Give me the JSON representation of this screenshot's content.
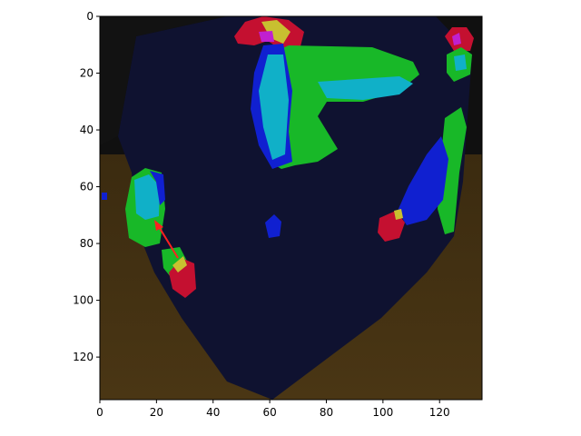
{
  "axes": {
    "x_range": [
      0,
      135
    ],
    "y_range": [
      0,
      135
    ],
    "y_inverted": true,
    "x_ticks": [
      0,
      20,
      40,
      60,
      80,
      100,
      120
    ],
    "y_ticks": [
      0,
      20,
      40,
      60,
      80,
      100,
      120
    ],
    "x_tick_labels": [
      "0",
      "20",
      "40",
      "60",
      "80",
      "100",
      "120"
    ],
    "y_tick_labels": [
      "0",
      "20",
      "40",
      "60",
      "80",
      "100",
      "120"
    ]
  },
  "image_content": {
    "description_colors": {
      "background_dark": "#0e0f22",
      "floor_brown": "#3a2a12",
      "red": "#c41030",
      "green": "#18b828",
      "cyan": "#10b0c8",
      "blue": "#1020d0",
      "yellow": "#c8c030",
      "magenta": "#c020d0",
      "arrow_red": "#ff2020"
    }
  }
}
